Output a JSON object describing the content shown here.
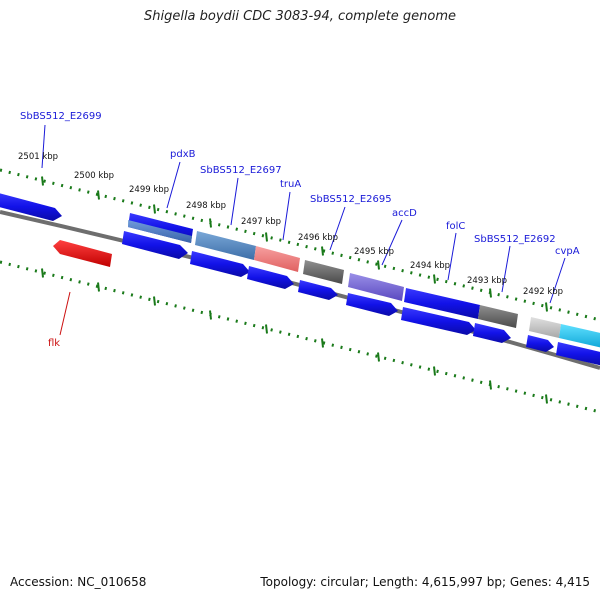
{
  "title": "Shigella boydii CDC 3083-94, complete genome",
  "footer": {
    "accession": "Accession: NC_010658",
    "topology": "Topology: circular; Length: 4,615,997 bp; Genes: 4,415"
  },
  "colors": {
    "cds_forward": "#1010e6",
    "cds_reverse": "#1010e6",
    "flk": "#e31010",
    "tick": "#1a7a1a",
    "backbone": "#7a7a7a",
    "gene_label": "#1a1ad8",
    "flk_label": "#cc1111"
  },
  "kbp_ticks": [
    "2501 kbp",
    "2500 kbp",
    "2499 kbp",
    "2498 kbp",
    "2497 kbp",
    "2496 kbp",
    "2495 kbp",
    "2494 kbp",
    "2493 kbp",
    "2492 kbp"
  ],
  "gene_labels": [
    "SbBS512_E2699",
    "pdxB",
    "SbBS512_E2697",
    "truA",
    "SbBS512_E2695",
    "accD",
    "folC",
    "SbBS512_E2692",
    "cvpA",
    "flk"
  ]
}
